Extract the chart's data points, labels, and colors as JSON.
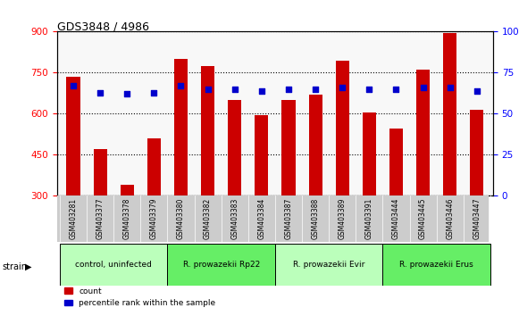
{
  "title": "GDS3848 / 4986",
  "samples": [
    "GSM403281",
    "GSM403377",
    "GSM403378",
    "GSM403379",
    "GSM403380",
    "GSM403382",
    "GSM403383",
    "GSM403384",
    "GSM403387",
    "GSM403388",
    "GSM403389",
    "GSM403391",
    "GSM403444",
    "GSM403445",
    "GSM403446",
    "GSM403447"
  ],
  "counts": [
    735,
    470,
    340,
    510,
    800,
    775,
    650,
    595,
    650,
    670,
    795,
    605,
    545,
    760,
    895,
    615
  ],
  "percentiles": [
    67,
    63,
    62,
    63,
    67,
    65,
    65,
    64,
    65,
    65,
    66,
    65,
    65,
    66,
    66,
    64
  ],
  "groups": [
    {
      "label": "control, uninfected",
      "start": 0,
      "end": 4,
      "color": "#bbffbb"
    },
    {
      "label": "R. prowazekii Rp22",
      "start": 4,
      "end": 8,
      "color": "#66ee66"
    },
    {
      "label": "R. prowazekii Evir",
      "start": 8,
      "end": 12,
      "color": "#bbffbb"
    },
    {
      "label": "R. prowazekii Erus",
      "start": 12,
      "end": 16,
      "color": "#66ee66"
    }
  ],
  "ylim_left": [
    300,
    900
  ],
  "ylim_right": [
    0,
    100
  ],
  "yticks_left": [
    300,
    450,
    600,
    750,
    900
  ],
  "yticks_right": [
    0,
    25,
    50,
    75,
    100
  ],
  "bar_color": "#cc0000",
  "dot_color": "#0000cc",
  "legend_count_color": "#cc0000",
  "legend_pct_color": "#0000cc"
}
